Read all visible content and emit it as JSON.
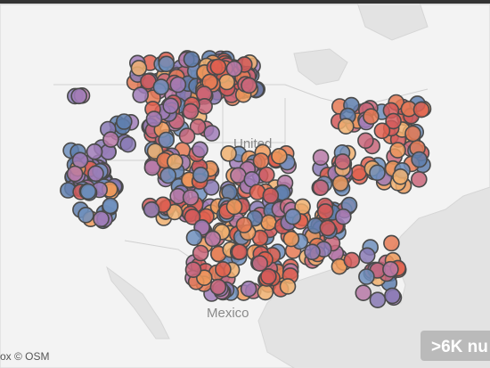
{
  "map": {
    "labels": {
      "country_us": "United",
      "country_mexico": "Mexico"
    },
    "attribution": "ox © OSM",
    "badge": ">6K nu"
  }
}
